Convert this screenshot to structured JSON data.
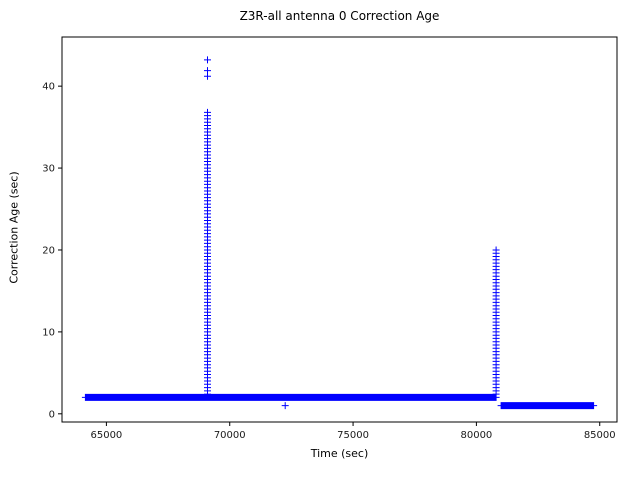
{
  "chart_data": {
    "type": "scatter",
    "title": "Z3R-all antenna 0 Correction Age",
    "xlabel": "Time (sec)",
    "ylabel": "Correction Age (sec)",
    "xlim": [
      63200,
      85700
    ],
    "ylim": [
      -1,
      46
    ],
    "xticks": [
      65000,
      70000,
      75000,
      80000,
      85000
    ],
    "yticks": [
      0,
      10,
      20,
      30,
      40
    ],
    "marker": "+",
    "color": "#0000ff",
    "legend": "none",
    "grid": false,
    "series": [
      {
        "name": "correction-age-2sec-band",
        "kind": "hband",
        "x_start": 64150,
        "x_end": 80820,
        "x_step": 30,
        "y": 2
      },
      {
        "name": "correction-age-1sec-band",
        "kind": "hband",
        "x_start": 81000,
        "x_end": 84750,
        "x_step": 30,
        "y": 1
      },
      {
        "name": "dropout-spike-69100",
        "kind": "vspike",
        "x": 69100,
        "y_min": 2,
        "y_max": 37,
        "y_step": 0.4
      },
      {
        "name": "dropout-spike-69100-top-points",
        "kind": "points",
        "points": [
          [
            69100,
            41.2
          ],
          [
            69100,
            41.9
          ],
          [
            69100,
            43.2
          ]
        ]
      },
      {
        "name": "dropout-spike-80800",
        "kind": "vspike",
        "x": 80800,
        "y_min": 2,
        "y_max": 20,
        "y_step": 0.4
      },
      {
        "name": "outlier-point",
        "kind": "points",
        "points": [
          [
            72250,
            1
          ]
        ]
      }
    ]
  }
}
